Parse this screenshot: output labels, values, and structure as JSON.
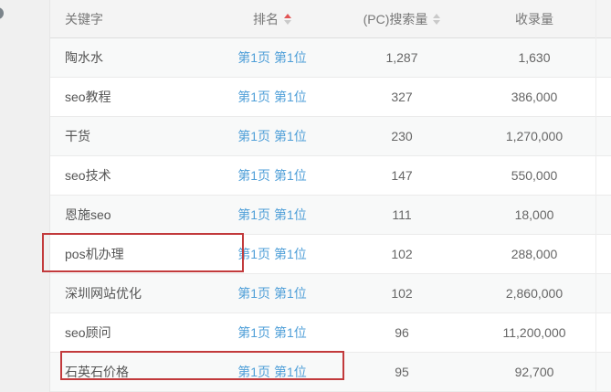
{
  "table": {
    "header": {
      "columns": [
        {
          "key": "keyword",
          "label": "关键字",
          "sort": null
        },
        {
          "key": "rank",
          "label": "排名",
          "sort": "asc"
        },
        {
          "key": "pc_search_volume",
          "label": "(PC)搜索量",
          "sort": "unsorted"
        },
        {
          "key": "indexed_volume",
          "label": "收录量",
          "sort": null
        }
      ]
    },
    "rows": [
      {
        "keyword": "陶水水",
        "rank": "第1页 第1位",
        "pc_search_volume": "1,287",
        "indexed_volume": "1,630"
      },
      {
        "keyword": "seo教程",
        "rank": "第1页 第1位",
        "pc_search_volume": "327",
        "indexed_volume": "386,000"
      },
      {
        "keyword": "干货",
        "rank": "第1页 第1位",
        "pc_search_volume": "230",
        "indexed_volume": "1,270,000"
      },
      {
        "keyword": "seo技术",
        "rank": "第1页 第1位",
        "pc_search_volume": "147",
        "indexed_volume": "550,000"
      },
      {
        "keyword": "恩施seo",
        "rank": "第1页 第1位",
        "pc_search_volume": "111",
        "indexed_volume": "18,000"
      },
      {
        "keyword": "pos机办理",
        "rank": "第1页 第1位",
        "pc_search_volume": "102",
        "indexed_volume": "288,000"
      },
      {
        "keyword": "深圳网站优化",
        "rank": "第1页 第1位",
        "pc_search_volume": "102",
        "indexed_volume": "2,860,000"
      },
      {
        "keyword": "seo顾问",
        "rank": "第1页 第1位",
        "pc_search_volume": "96",
        "indexed_volume": "11,200,000"
      },
      {
        "keyword": "石英石价格",
        "rank": "第1页 第1位",
        "pc_search_volume": "95",
        "indexed_volume": "92,700"
      }
    ]
  },
  "annotations": {
    "red_boxes": [
      {
        "target": "pos机办理 keyword cell"
      },
      {
        "target": "石英石价格 keyword and rank cells"
      }
    ]
  },
  "colors": {
    "link_blue": "#4f9fd8",
    "annotation_red": "#c23a3c",
    "sort_active_red": "#e25555",
    "header_bg": "#f4f4f4",
    "page_bg": "#f0f0f0"
  }
}
